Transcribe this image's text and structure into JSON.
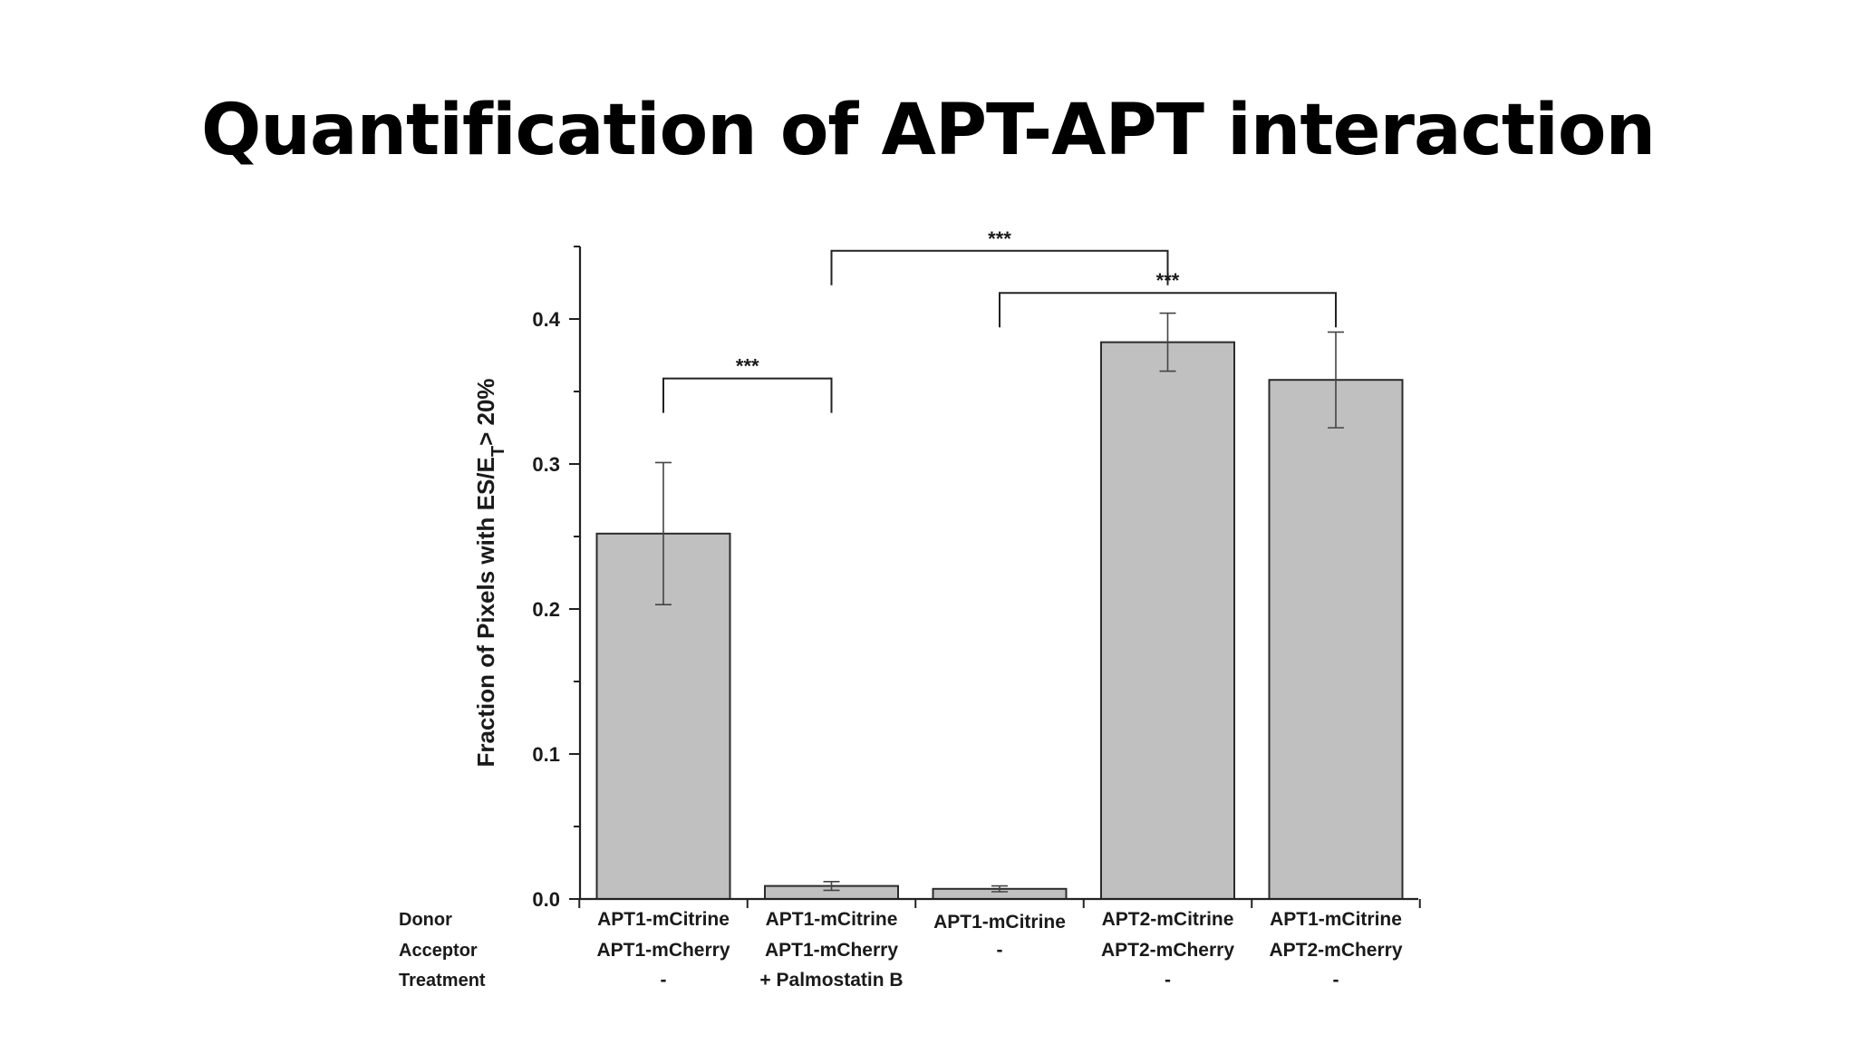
{
  "slide": {
    "title": "Quantification of APT-APT interaction"
  },
  "chart_data": {
    "type": "bar",
    "title": "",
    "ylabel": "Fraction of Pixels with ES/E",
    "ylabel_sub": "T",
    "ylabel_suffix": "> 20%",
    "ylim": [
      0.0,
      0.45
    ],
    "yticks": [
      "0.0",
      "0.1",
      "0.2",
      "0.3",
      "0.4"
    ],
    "ytick_values": [
      0.0,
      0.1,
      0.2,
      0.3,
      0.4
    ],
    "grid": false,
    "bar_color": "#c0c0c0",
    "row_labels": [
      "Donor",
      "Acceptor",
      "Treatment"
    ],
    "conditions": [
      {
        "donor": "APT1-mCitrine",
        "acceptor": "APT1-mCherry",
        "treatment": "-"
      },
      {
        "donor": "APT1-mCitrine",
        "acceptor": "APT1-mCherry",
        "treatment": "+ Palmostatin B"
      },
      {
        "donor": "APT1-mCitrine",
        "acceptor": "-",
        "treatment": ""
      },
      {
        "donor": "APT2-mCitrine",
        "acceptor": "APT2-mCherry",
        "treatment": "-"
      },
      {
        "donor": "APT1-mCitrine",
        "acceptor": "APT2-mCherry",
        "treatment": "-"
      }
    ],
    "values": [
      0.252,
      0.009,
      0.007,
      0.384,
      0.358
    ],
    "errors": [
      0.049,
      0.003,
      0.002,
      0.02,
      0.033
    ],
    "significance": [
      {
        "from": 0,
        "to": 1,
        "label": "***",
        "y": 0.359
      },
      {
        "from": 1,
        "to": 3,
        "label": "***",
        "y": 0.447
      },
      {
        "from": 2,
        "to": 4,
        "label": "***",
        "y": 0.418
      }
    ]
  }
}
